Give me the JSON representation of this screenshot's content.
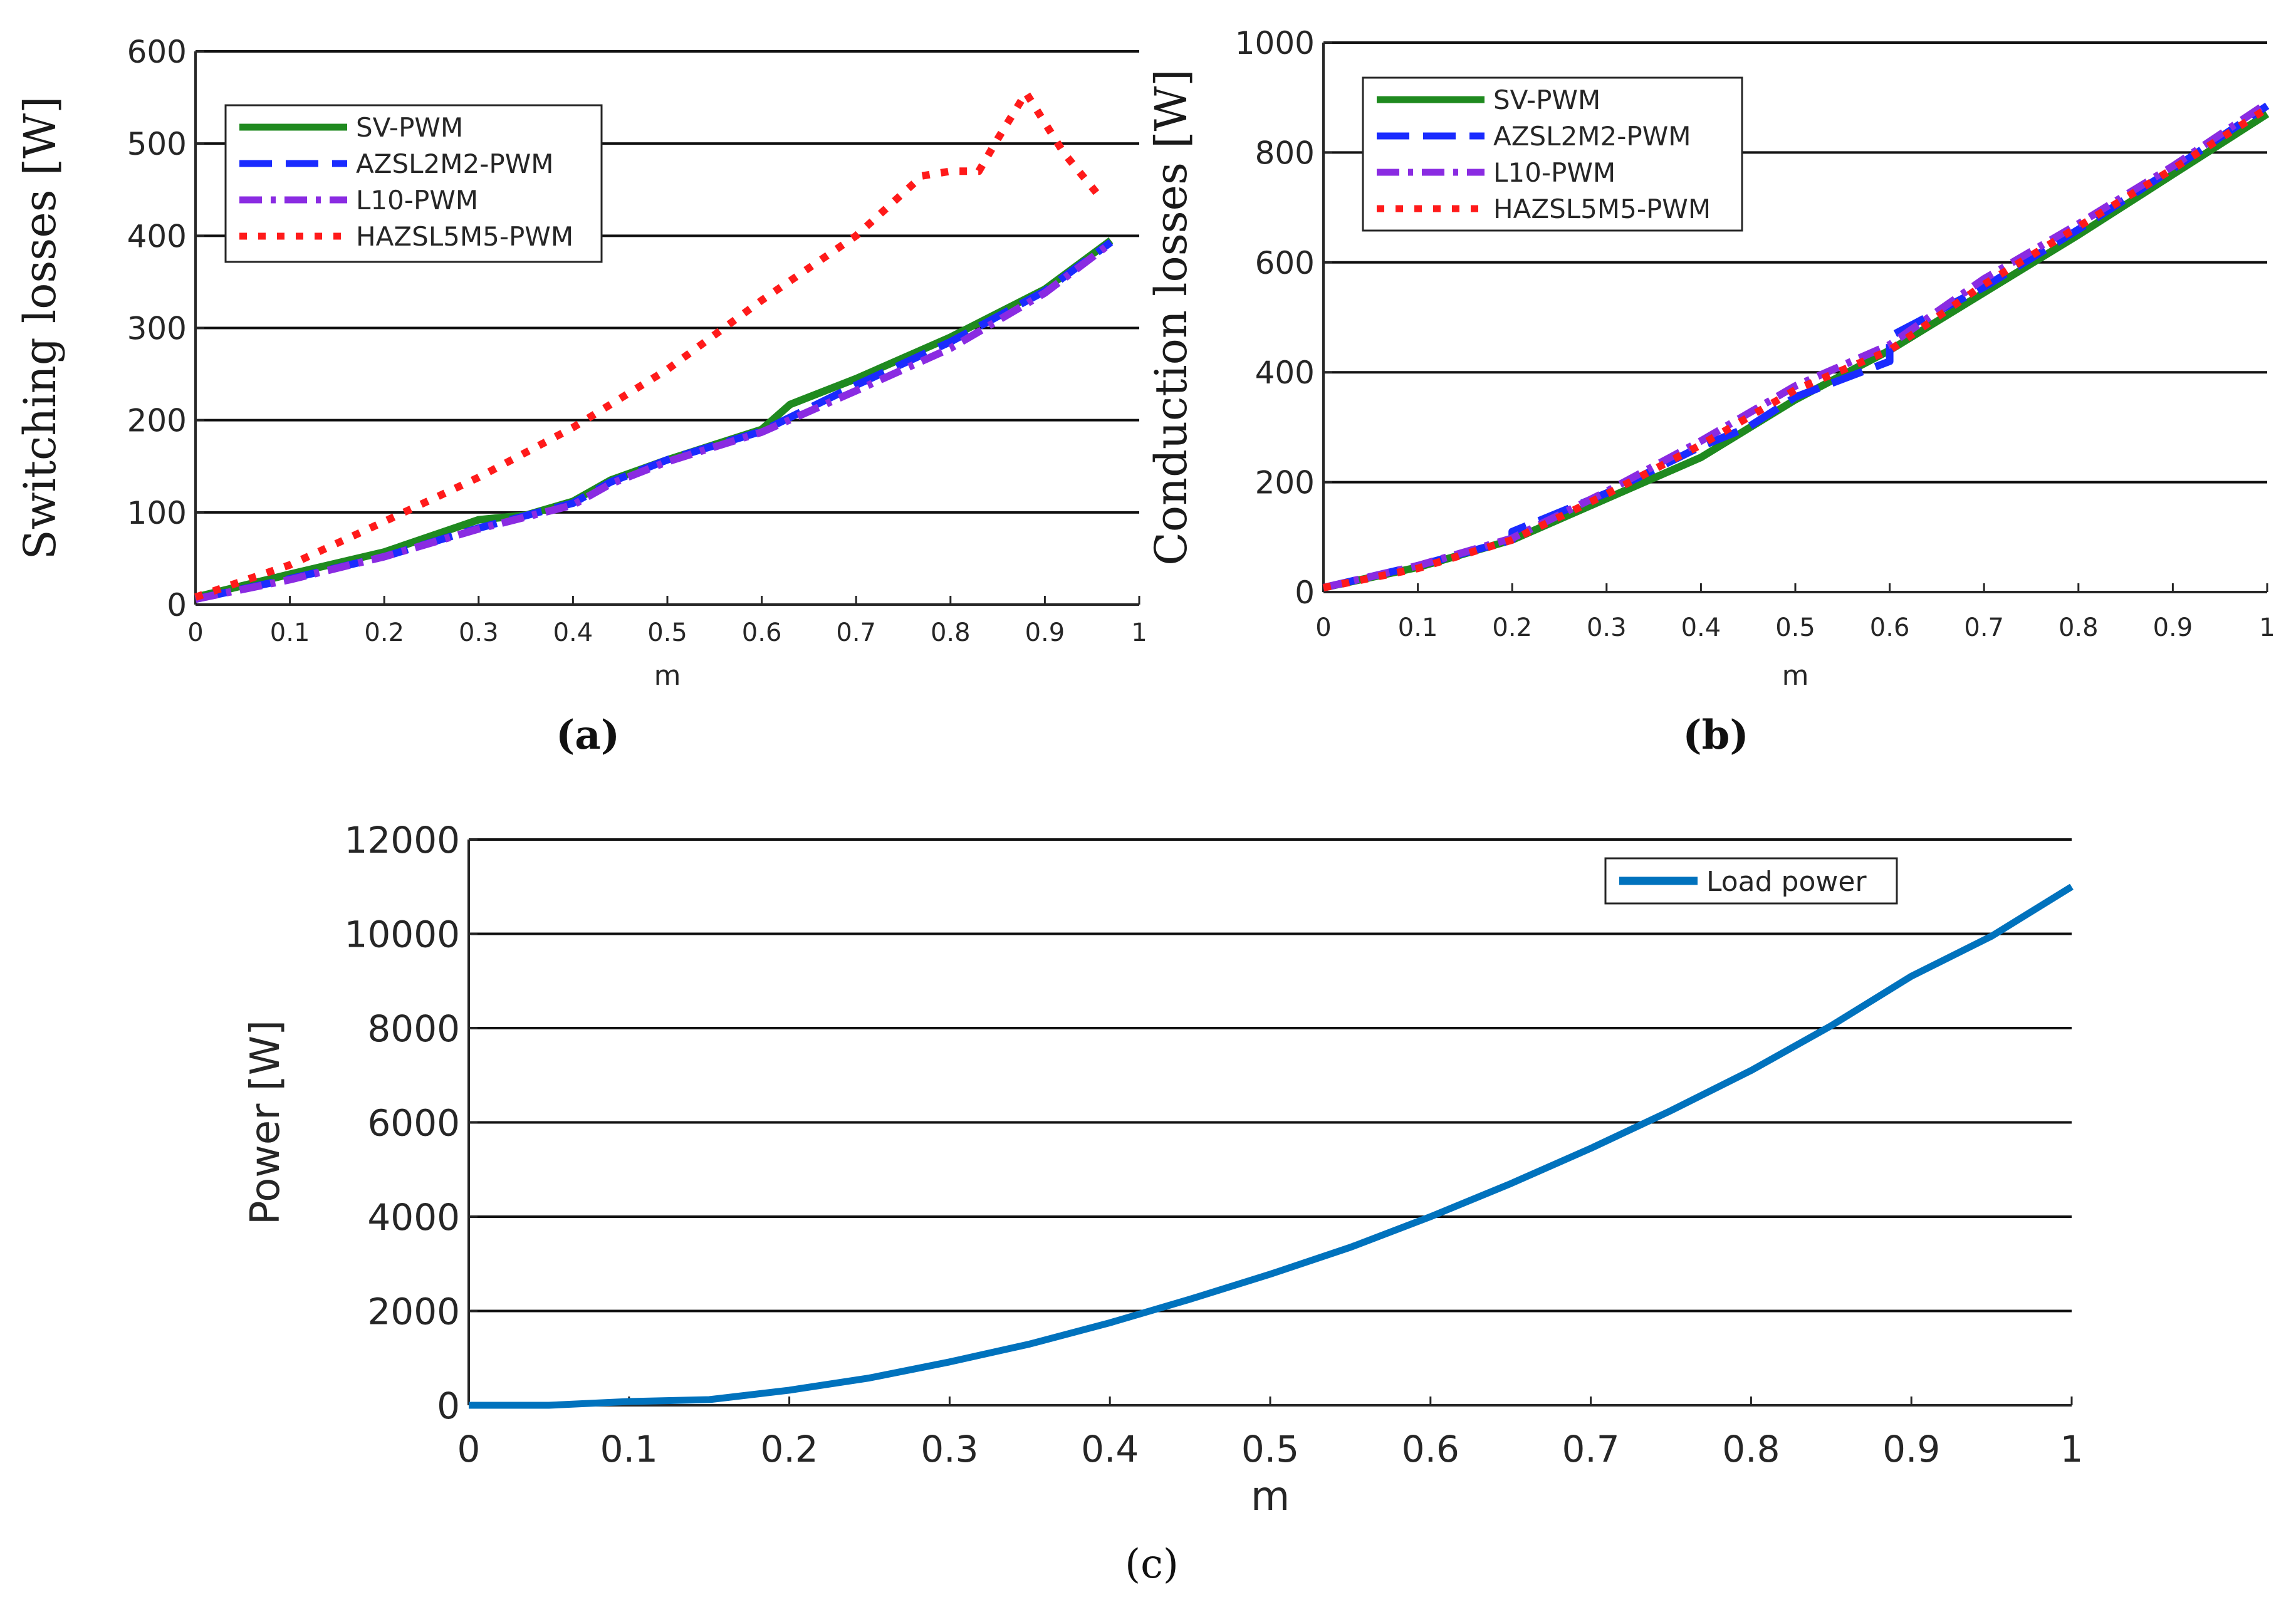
{
  "chart_data": [
    {
      "id": "a",
      "type": "line",
      "caption": "(a)",
      "xlabel": "m",
      "ylabel": "Switching losses [W]",
      "xlim": [
        0,
        1
      ],
      "ylim": [
        0,
        600
      ],
      "xticks": [
        "0",
        "0.1",
        "0.2",
        "0.3",
        "0.4",
        "0.5",
        "0.6",
        "0.7",
        "0.8",
        "0.9",
        "1"
      ],
      "yticks": [
        "0",
        "100",
        "200",
        "300",
        "400",
        "500",
        "600"
      ],
      "grid": "horizontal",
      "legend_position": "top-left",
      "series": [
        {
          "name": "SV-PWM",
          "style": "solid",
          "color": "#1f8a1f",
          "x": [
            0,
            0.1,
            0.2,
            0.28,
            0.3,
            0.35,
            0.4,
            0.44,
            0.5,
            0.6,
            0.63,
            0.7,
            0.8,
            0.9,
            0.97
          ],
          "y": [
            8,
            33,
            57,
            85,
            92,
            97,
            112,
            135,
            157,
            190,
            217,
            245,
            290,
            342,
            395
          ]
        },
        {
          "name": "AZSL2M2-PWM",
          "style": "dashed",
          "color": "#1a2bff",
          "x": [
            0,
            0.1,
            0.2,
            0.3,
            0.4,
            0.44,
            0.5,
            0.6,
            0.7,
            0.8,
            0.9,
            0.97
          ],
          "y": [
            6,
            28,
            52,
            83,
            110,
            133,
            157,
            188,
            238,
            285,
            340,
            393
          ]
        },
        {
          "name": "L10-PWM",
          "style": "dashdot",
          "color": "#8a2be2",
          "x": [
            0,
            0.1,
            0.2,
            0.3,
            0.4,
            0.44,
            0.5,
            0.6,
            0.7,
            0.8,
            0.9,
            0.97
          ],
          "y": [
            6,
            27,
            52,
            82,
            108,
            131,
            155,
            187,
            232,
            278,
            338,
            392
          ]
        },
        {
          "name": "HAZSL5M5-PWM",
          "style": "dotted",
          "color": "#ff1a1a",
          "x": [
            0,
            0.1,
            0.2,
            0.3,
            0.4,
            0.5,
            0.6,
            0.7,
            0.77,
            0.8,
            0.83,
            0.85,
            0.88,
            0.92,
            0.96
          ],
          "y": [
            8,
            43,
            90,
            138,
            192,
            255,
            330,
            400,
            465,
            470,
            470,
            505,
            555,
            490,
            440
          ]
        }
      ]
    },
    {
      "id": "b",
      "type": "line",
      "caption": "(b)",
      "xlabel": "m",
      "ylabel": "Conduction losses [W]",
      "xlim": [
        0,
        1
      ],
      "ylim": [
        0,
        1000
      ],
      "xticks": [
        "0",
        "0.1",
        "0.2",
        "0.3",
        "0.4",
        "0.5",
        "0.6",
        "0.7",
        "0.8",
        "0.9",
        "1"
      ],
      "yticks": [
        "0",
        "200",
        "400",
        "600",
        "800",
        "1000"
      ],
      "grid": "horizontal",
      "legend_position": "top-left",
      "series": [
        {
          "name": "SV-PWM",
          "style": "solid",
          "color": "#1f8a1f",
          "x": [
            0,
            0.1,
            0.2,
            0.3,
            0.4,
            0.5,
            0.6,
            0.7,
            0.8,
            0.9,
            1.0
          ],
          "y": [
            8,
            45,
            95,
            170,
            245,
            350,
            440,
            545,
            650,
            760,
            870
          ]
        },
        {
          "name": "AZSL2M2-PWM",
          "style": "dashed",
          "color": "#1a2bff",
          "x": [
            0,
            0.1,
            0.2,
            0.2,
            0.3,
            0.4,
            0.45,
            0.5,
            0.6,
            0.6,
            0.7,
            0.8,
            0.9,
            1.0
          ],
          "y": [
            8,
            48,
            95,
            110,
            180,
            265,
            300,
            355,
            420,
            465,
            555,
            660,
            770,
            885
          ]
        },
        {
          "name": "L10-PWM",
          "style": "dashdot",
          "color": "#8a2be2",
          "x": [
            0,
            0.1,
            0.2,
            0.3,
            0.4,
            0.5,
            0.6,
            0.7,
            0.8,
            0.9,
            1.0
          ],
          "y": [
            8,
            48,
            98,
            183,
            275,
            375,
            450,
            570,
            670,
            775,
            890
          ]
        },
        {
          "name": "HAZSL5M5-PWM",
          "style": "dotted",
          "color": "#ff1a1a",
          "x": [
            0,
            0.1,
            0.2,
            0.3,
            0.4,
            0.5,
            0.6,
            0.7,
            0.8,
            0.9,
            1.0
          ],
          "y": [
            8,
            43,
            95,
            178,
            268,
            368,
            440,
            560,
            665,
            770,
            880
          ]
        }
      ]
    },
    {
      "id": "c",
      "type": "line",
      "caption": "(c)",
      "xlabel": "m",
      "ylabel": "Power [W]",
      "xlim": [
        0,
        1
      ],
      "ylim": [
        0,
        12000
      ],
      "xticks": [
        "0",
        "0.1",
        "0.2",
        "0.3",
        "0.4",
        "0.5",
        "0.6",
        "0.7",
        "0.8",
        "0.9",
        "1"
      ],
      "yticks": [
        "0",
        "2000",
        "4000",
        "6000",
        "8000",
        "10000",
        "12000"
      ],
      "grid": "horizontal",
      "legend_position": "top-right",
      "series": [
        {
          "name": "Load power",
          "style": "solid",
          "color": "#0072bd",
          "x": [
            0,
            0.05,
            0.1,
            0.15,
            0.2,
            0.25,
            0.3,
            0.35,
            0.4,
            0.45,
            0.5,
            0.55,
            0.6,
            0.65,
            0.7,
            0.75,
            0.8,
            0.85,
            0.9,
            0.95,
            1.0
          ],
          "y": [
            0,
            0,
            80,
            120,
            320,
            580,
            920,
            1300,
            1750,
            2250,
            2780,
            3350,
            4000,
            4700,
            5450,
            6250,
            7100,
            8050,
            9100,
            9950,
            11000
          ]
        }
      ]
    }
  ]
}
